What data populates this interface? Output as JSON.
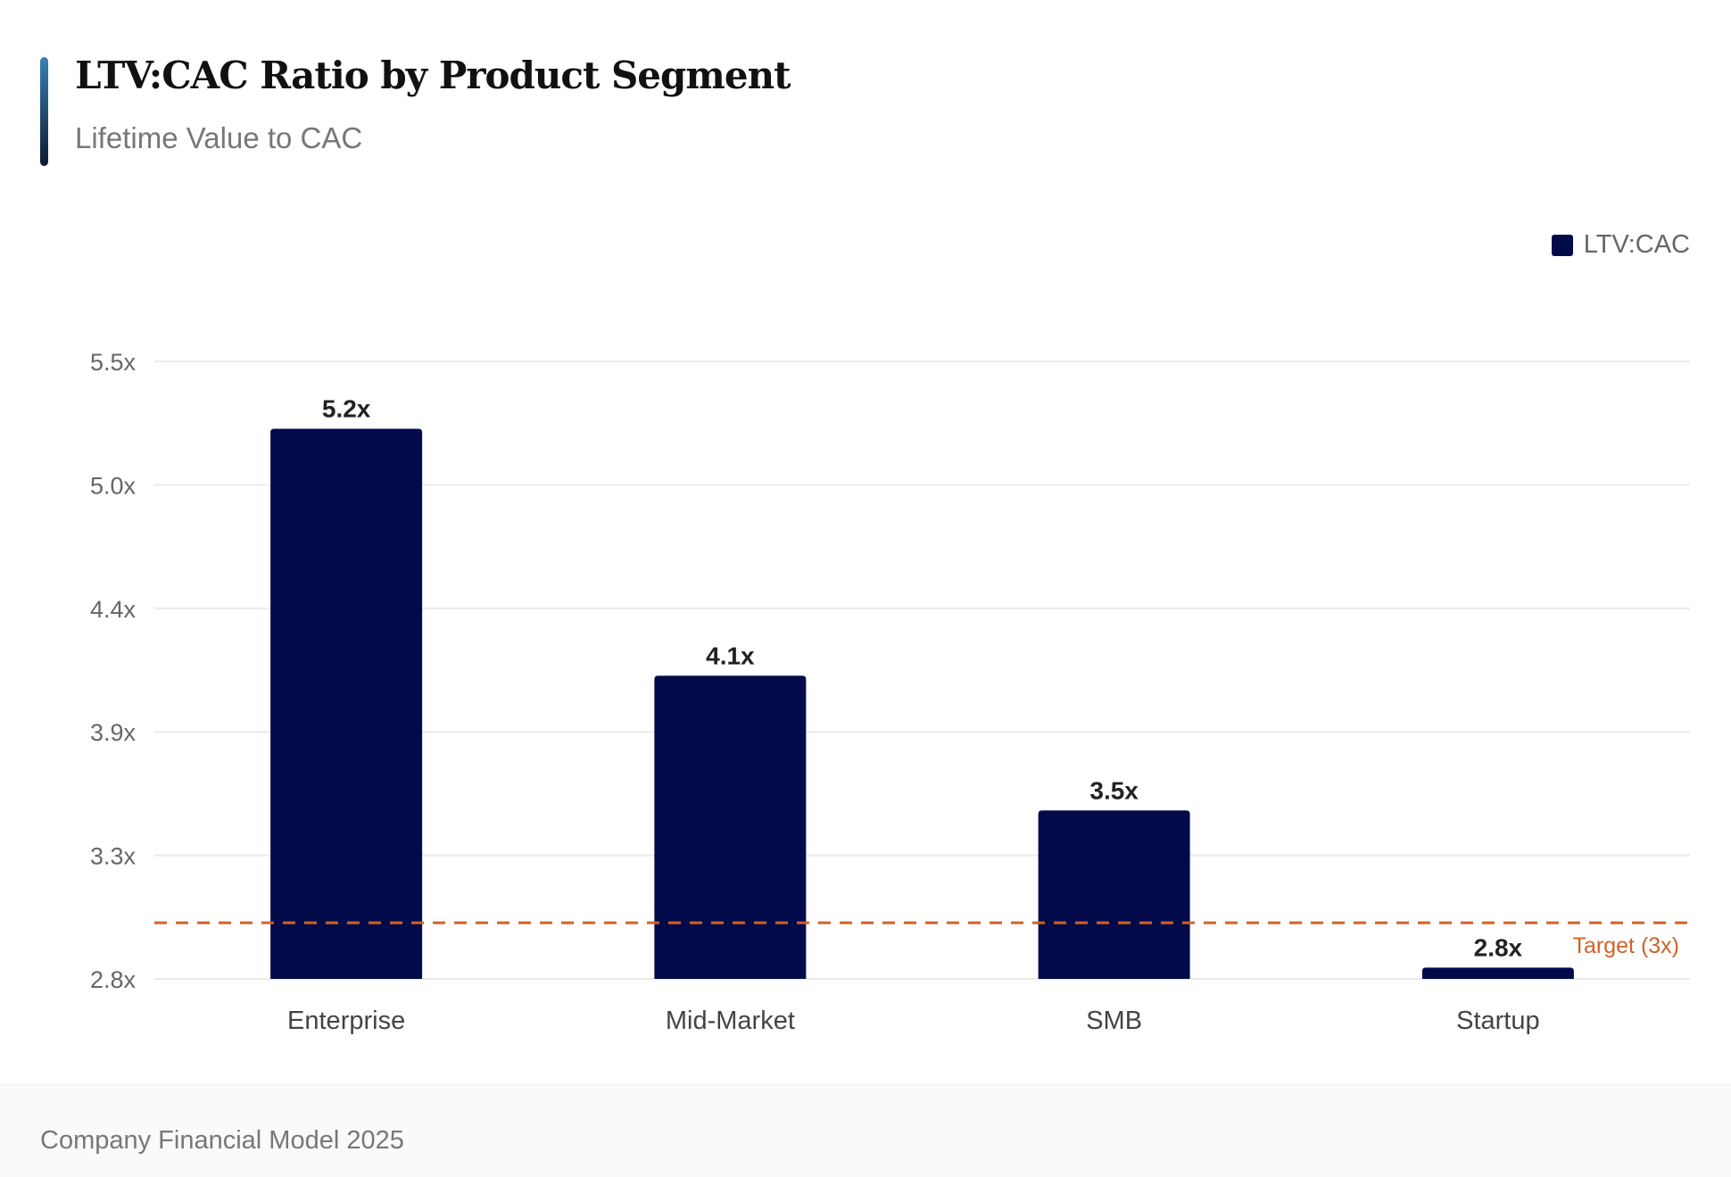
{
  "chart_data": {
    "type": "bar",
    "title": "LTV:CAC Ratio by Product Segment",
    "subtitle": "Lifetime Value to CAC",
    "categories": [
      "Enterprise",
      "Mid-Market",
      "SMB",
      "Startup"
    ],
    "series": [
      {
        "name": "LTV:CAC",
        "values": [
          5.2,
          4.1,
          3.5,
          2.8
        ],
        "color": "#030a4a"
      }
    ],
    "data_labels": [
      "5.2x",
      "4.1x",
      "3.5x",
      "2.8x"
    ],
    "ylim": [
      2.75,
      5.5
    ],
    "yticks": [
      2.75,
      3.3,
      3.85,
      4.4,
      4.95,
      5.5
    ],
    "ytick_labels": [
      "2.8x",
      "3.3x",
      "3.9x",
      "4.4x",
      "5.0x",
      "5.5x"
    ],
    "grid": true,
    "legend_position": "top-right",
    "reference_line": {
      "value": 3,
      "label": "Target (3x)",
      "color": "#d0622a",
      "style": "dashed"
    }
  },
  "footer": {
    "text": "Company Financial Model 2025"
  }
}
